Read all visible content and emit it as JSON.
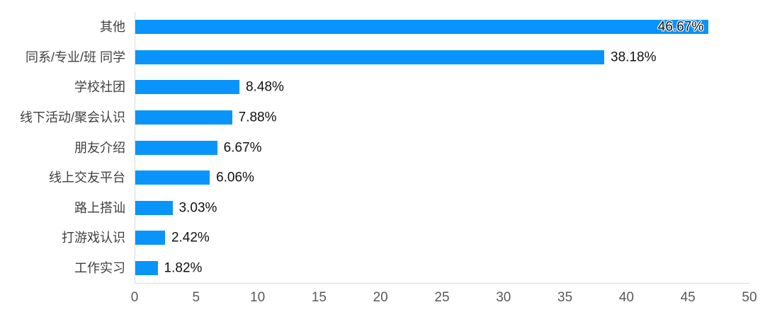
{
  "chart_data": {
    "type": "bar",
    "orientation": "horizontal",
    "title": "",
    "xlabel": "",
    "ylabel": "",
    "categories": [
      "其他",
      "同系/专业/班 同学",
      "学校社团",
      "线下活动/聚会认识",
      "朋友介绍",
      "线上交友平台",
      "路上搭讪",
      "打游戏认识",
      "工作实习"
    ],
    "values": [
      46.67,
      38.18,
      8.48,
      7.88,
      6.67,
      6.06,
      3.03,
      2.42,
      1.82
    ],
    "value_labels": [
      "46.67%",
      "38.18%",
      "8.48%",
      "7.88%",
      "6.67%",
      "6.06%",
      "3.03%",
      "2.42%",
      "1.82%"
    ],
    "xlim": [
      0,
      50
    ],
    "x_ticks": [
      0,
      5,
      10,
      15,
      20,
      25,
      30,
      35,
      40,
      45,
      50
    ],
    "grid": false,
    "legend_position": "none",
    "colors": {
      "bar": "#0894FB",
      "axis_line": "#D9D9D9",
      "category_label": "#3F3F3F",
      "tick_label": "#595959",
      "value_label": "#111111"
    }
  }
}
